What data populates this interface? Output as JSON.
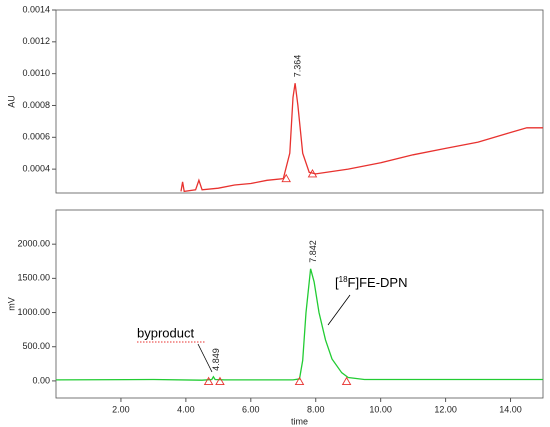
{
  "chart_data": [
    {
      "type": "line",
      "ylabel": "AU",
      "xlim": [
        0,
        15
      ],
      "ylim": [
        0.00025,
        0.0014
      ],
      "yticks": [
        0.0004,
        0.0006,
        0.0008,
        {
          "value": 0.001,
          "label": "0.0010"
        },
        0.0012,
        0.0014
      ],
      "series": [
        {
          "color": "#e8322f",
          "x": [
            3.85,
            3.9,
            3.95,
            4.3,
            4.4,
            4.5,
            5.0,
            5.5,
            6.0,
            6.5,
            7.0,
            7.2,
            7.3,
            7.364,
            7.45,
            7.6,
            7.8,
            8.0,
            9.0,
            10.0,
            11.0,
            12.0,
            13.0,
            14.0,
            14.5,
            15.0
          ],
          "values": [
            0.00026,
            0.00032,
            0.00026,
            0.00027,
            0.00033,
            0.00027,
            0.00028,
            0.0003,
            0.00031,
            0.00033,
            0.00034,
            0.0005,
            0.00085,
            0.00094,
            0.0008,
            0.0005,
            0.00038,
            0.00037,
            0.0004,
            0.00044,
            0.00049,
            0.00053,
            0.00057,
            0.00063,
            0.00066,
            0.00066
          ]
        }
      ],
      "peak_x": [
        7.364
      ],
      "integration_marks": {
        "x": [
          7.09,
          7.9
        ],
        "values": [
          0.00034,
          0.00037
        ]
      }
    },
    {
      "type": "line",
      "ylabel": "mV",
      "xlabel": "time",
      "xlim": [
        0,
        15
      ],
      "ylim": [
        -250,
        2500
      ],
      "xticks": [
        {
          "value": 2,
          "label": "2.00"
        },
        {
          "value": 4,
          "label": "4.00"
        },
        {
          "value": 6,
          "label": "6.00"
        },
        {
          "value": 8,
          "label": "8.00"
        },
        {
          "value": 10,
          "label": "10.00"
        },
        {
          "value": 12,
          "label": "12.00"
        },
        {
          "value": 14,
          "label": "14.00"
        }
      ],
      "yticks": [
        {
          "value": 0,
          "label": "0.00"
        },
        {
          "value": 500,
          "label": "500.00"
        },
        {
          "value": 1000,
          "label": "1000.00"
        },
        {
          "value": 1500,
          "label": "1500.00"
        },
        {
          "value": 2000,
          "label": "2000.00"
        }
      ],
      "series": [
        {
          "color": "#22cc33",
          "x": [
            0,
            3.0,
            4.5,
            4.8,
            4.849,
            4.9,
            5.2,
            7.3,
            7.5,
            7.6,
            7.7,
            7.842,
            7.95,
            8.1,
            8.3,
            8.5,
            8.8,
            9.0,
            9.5,
            15.0
          ],
          "values": [
            15,
            20,
            10,
            20,
            60,
            20,
            15,
            15,
            30,
            300,
            1000,
            1640,
            1450,
            1000,
            600,
            320,
            120,
            50,
            20,
            20
          ]
        }
      ],
      "peak_x": [
        4.849,
        7.842
      ],
      "integration_marks": {
        "x": [
          4.7,
          5.05,
          7.5,
          8.95
        ],
        "values": [
          -10,
          -10,
          -10,
          -10
        ]
      },
      "annotations": [
        {
          "text": "byproduct"
        },
        {
          "parts": [
            "[",
            "18",
            "F]FE-DPN"
          ]
        }
      ]
    }
  ]
}
